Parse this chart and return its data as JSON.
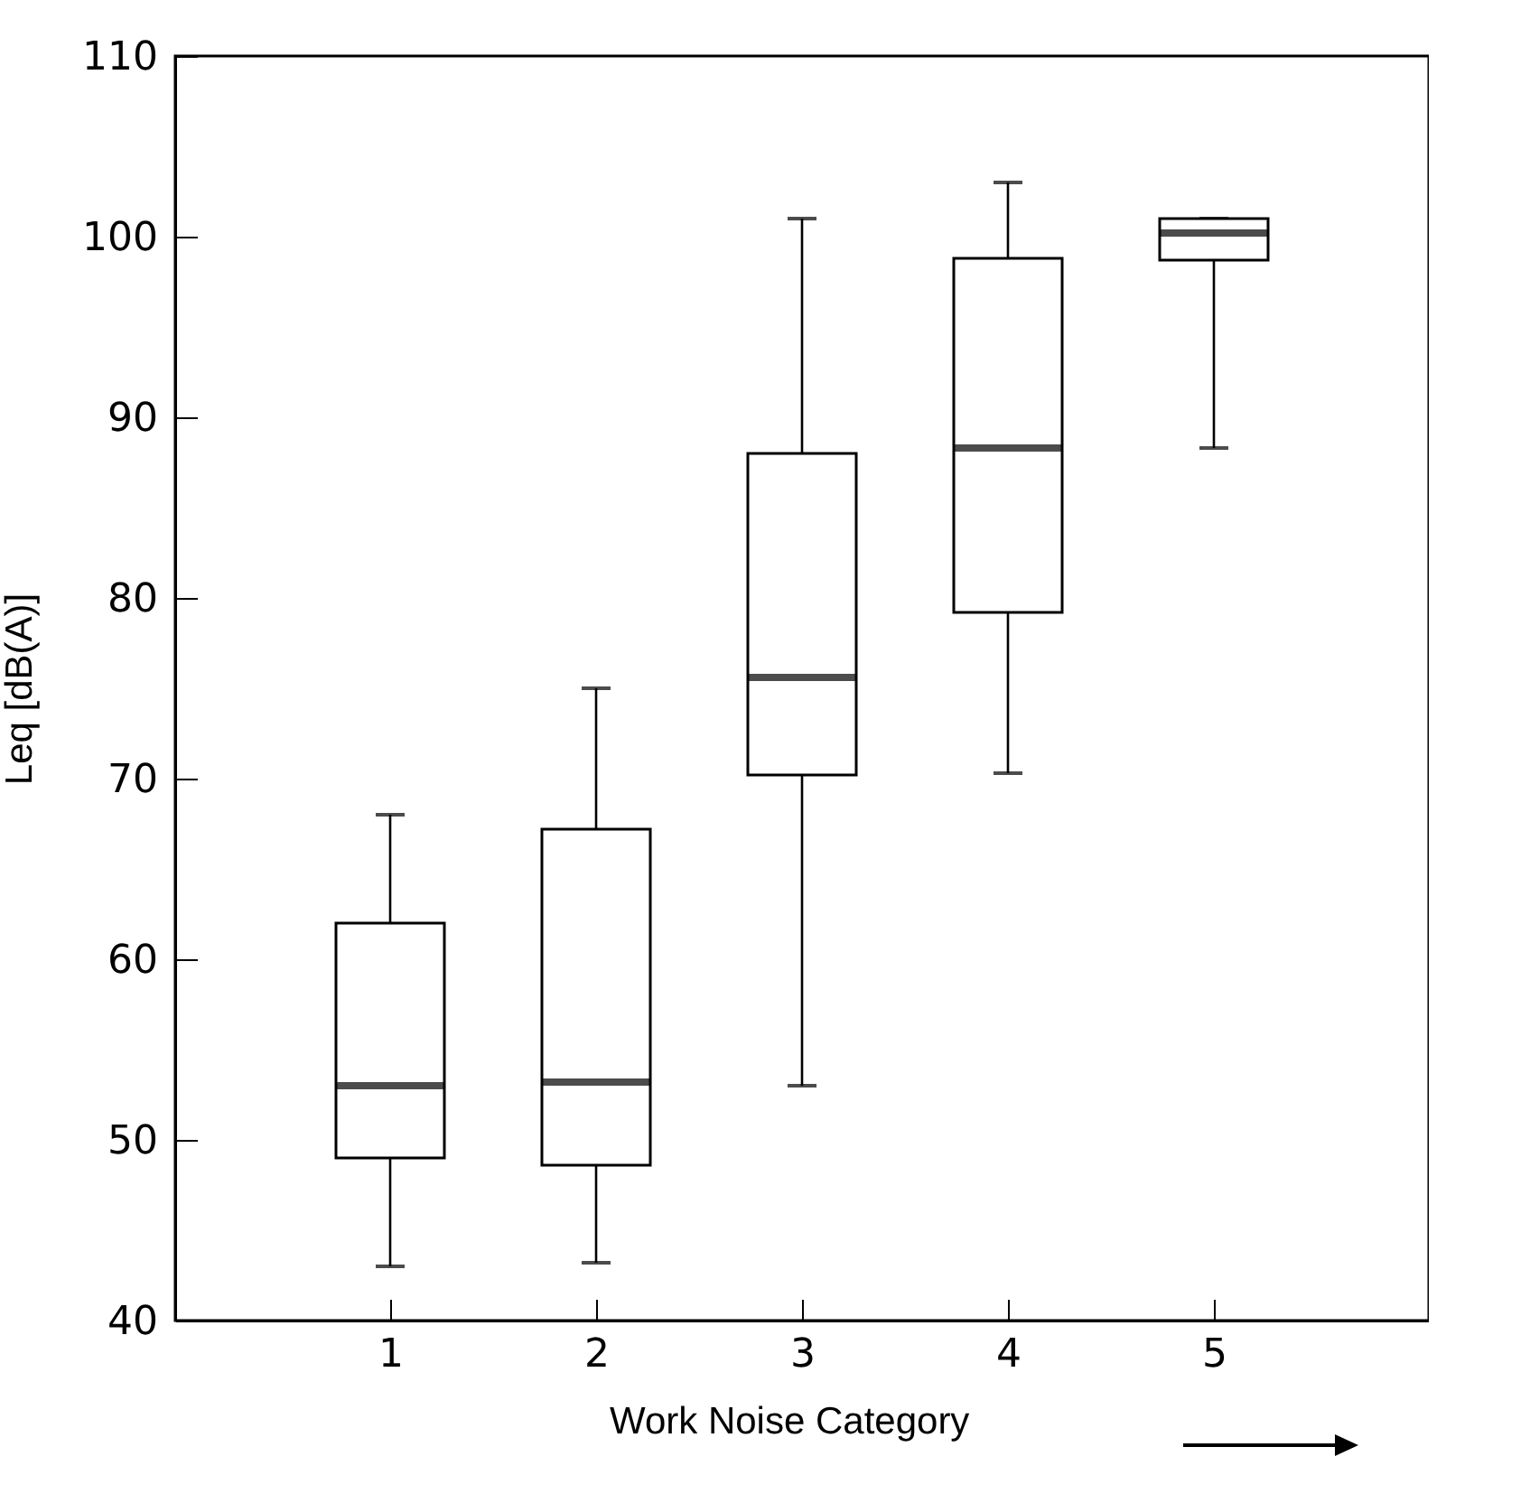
{
  "chart_data": {
    "type": "box",
    "xlabel": "Work Noise Category",
    "ylabel": "Leq [dB(A)]",
    "categories": [
      "1",
      "2",
      "3",
      "4",
      "5"
    ],
    "boxes": [
      {
        "low": 43,
        "q1": 49,
        "median": 53,
        "q3": 62,
        "high": 68
      },
      {
        "low": 43.2,
        "q1": 48.6,
        "median": 53.2,
        "q3": 67.2,
        "high": 75
      },
      {
        "low": 53,
        "q1": 70.2,
        "median": 75.6,
        "q3": 88,
        "high": 101
      },
      {
        "low": 70.3,
        "q1": 79.2,
        "median": 88.3,
        "q3": 98.8,
        "high": 103
      },
      {
        "low": 88.3,
        "q1": 98.7,
        "median": 100.2,
        "q3": 101,
        "high": 101
      }
    ],
    "ylim": [
      40,
      110
    ],
    "yticks": [
      40,
      50,
      60,
      70,
      80,
      90,
      100,
      110
    ],
    "grid": false
  }
}
